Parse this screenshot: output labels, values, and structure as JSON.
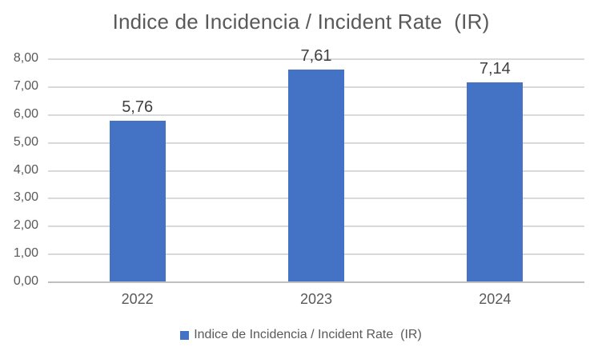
{
  "chart_data": {
    "type": "bar",
    "title": "Indice de Incidencia / Incident Rate  (IR)",
    "categories": [
      "2022",
      "2023",
      "2024"
    ],
    "series": [
      {
        "name": "Indice de Incidencia / Incident Rate  (IR)",
        "values": [
          5.76,
          7.61,
          7.14
        ],
        "color": "#4472C4"
      }
    ],
    "data_labels": [
      "5,76",
      "7,61",
      "7,14"
    ],
    "xlabel": "",
    "ylabel": "",
    "ylim": [
      0,
      8
    ],
    "y_tick_step": 1,
    "y_tick_labels": [
      "0,00",
      "1,00",
      "2,00",
      "3,00",
      "4,00",
      "5,00",
      "6,00",
      "7,00",
      "8,00"
    ],
    "grid": true,
    "legend_position": "bottom",
    "legend_label": "Indice de Incidencia / Incident Rate  (IR)"
  },
  "style": {
    "bar_color": "#4472C4",
    "title_color": "#595959",
    "axis_label_color": "#595959",
    "data_label_color": "#404040",
    "gridline_color": "#D9D9D9",
    "axis_line_color": "#BFBFBF",
    "background": "#FFFFFF"
  }
}
